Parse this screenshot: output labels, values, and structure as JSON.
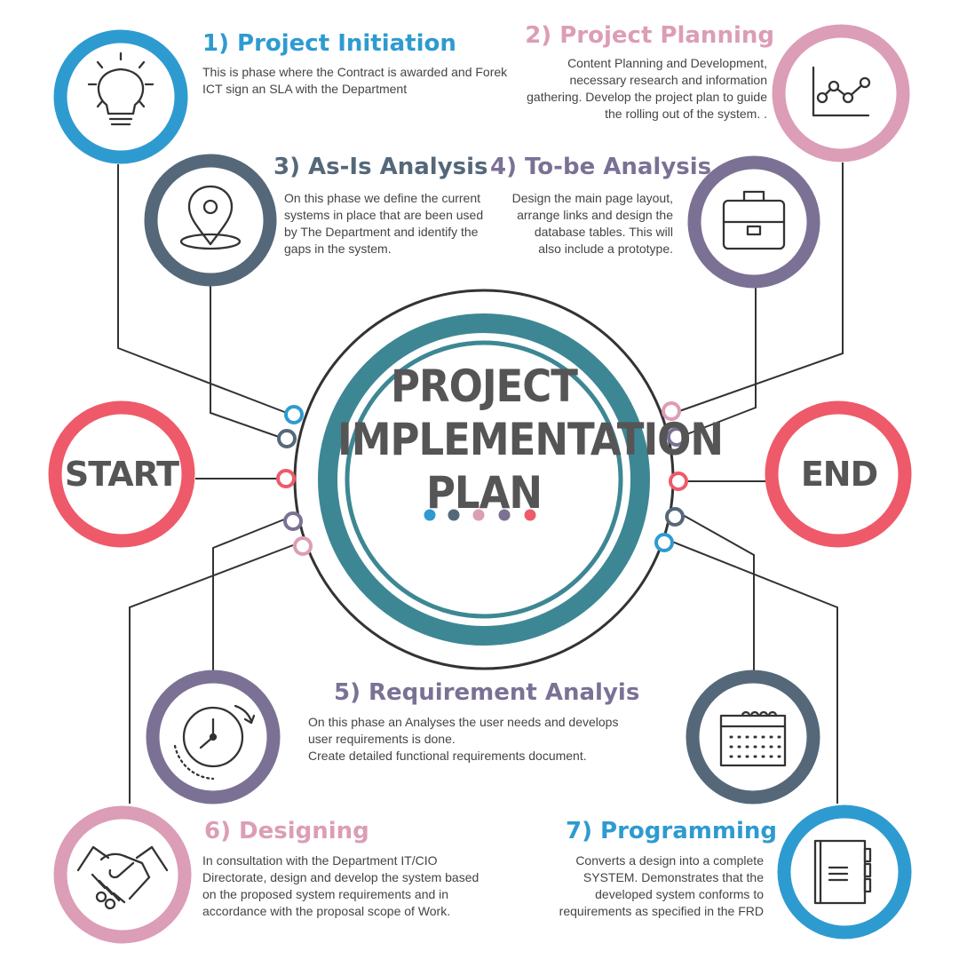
{
  "colors": {
    "blue": "#2e9bd0",
    "pink": "#dc9db6",
    "slate": "#55687a",
    "purple": "#7b7195",
    "red": "#ee5a69",
    "teal": "#3d8794",
    "line": "#333333"
  },
  "center": {
    "line1": "PROJECT",
    "line2": "IMPLEMENTATION",
    "line3": "PLAN"
  },
  "start": {
    "label": "START"
  },
  "end": {
    "label": "END"
  },
  "phases": [
    {
      "title": "1) Project Initiation",
      "description": "This is phase where the Contract is awarded and Forek ICT sign an SLA with the Department",
      "icon": "lightbulb-icon",
      "color": "#2e9bd0"
    },
    {
      "title": "2) Project Planning",
      "description": "Content Planning and Development, necessary research and information gathering. Develop the project plan to guide the rolling out of the system. .",
      "icon": "line-chart-icon",
      "color": "#dc9db6"
    },
    {
      "title": "3) As-Is Analysis",
      "description": "On this phase we define the current systems in place that are been used by The Department and identify the gaps in the system.",
      "icon": "location-pin-icon",
      "color": "#55687a"
    },
    {
      "title": "4) To-be Analysis",
      "description": "Design the main page layout, arrange links and design the database tables. This will also include a prototype.",
      "icon": "briefcase-icon",
      "color": "#7b7195"
    },
    {
      "title": "5) Requirement Analyis",
      "description_lines": [
        "On this phase an Analyses the user needs and develops",
        "user requirements is done.",
        "Create detailed functional requirements document."
      ],
      "icon": "stopwatch-icon",
      "color": "#7b7195"
    },
    {
      "title": "6) Designing",
      "description": "In consultation with the Department IT/CIO Directorate, design and develop the system based on the proposed system requirements and in accordance with the proposal scope of Work.",
      "icon": "handshake-icon",
      "color": "#dc9db6"
    },
    {
      "title": "7) Programming",
      "description": "Converts a design into a complete SYSTEM. Demonstrates that the developed system conforms to requirements as specified in the FRD",
      "icon": "notebook-icon",
      "color": "#2e9bd0"
    }
  ],
  "extra_icons": [
    "calendar-icon"
  ]
}
